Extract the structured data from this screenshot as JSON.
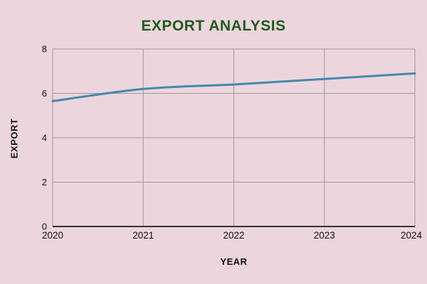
{
  "page": {
    "background_color": "#edd5dd"
  },
  "chart_data": {
    "type": "line",
    "title": "EXPORT ANALYSIS",
    "title_color": "#1e5b1e",
    "xlabel": "YEAR",
    "ylabel": "EXPORT",
    "categories": [
      "2020",
      "2021",
      "2022",
      "2023",
      "2024"
    ],
    "series": [
      {
        "name": "Export",
        "values": [
          5.65,
          6.2,
          6.4,
          6.65,
          6.9
        ],
        "color": "#4389aa"
      }
    ],
    "ylim": [
      0,
      8
    ],
    "yticks": [
      0,
      2,
      4,
      6,
      8
    ],
    "grid": true,
    "grid_color": "#9e979c",
    "axis_color": "#333333",
    "tick_label_color": "#111111",
    "legend": "none",
    "smooth": true
  }
}
